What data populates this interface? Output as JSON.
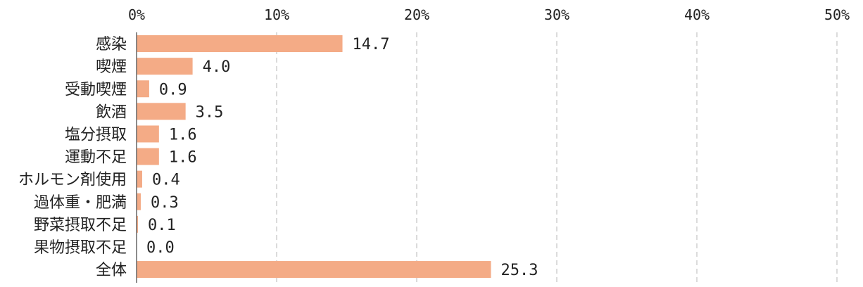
{
  "chart_data": {
    "type": "bar",
    "orientation": "horizontal",
    "categories": [
      "感染",
      "喫煙",
      "受動喫煙",
      "飲酒",
      "塩分摂取",
      "運動不足",
      "ホルモン剤使用",
      "過体重・肥満",
      "野菜摂取不足",
      "果物摂取不足",
      "全体"
    ],
    "values": [
      14.7,
      4.0,
      0.9,
      3.5,
      1.6,
      1.6,
      0.4,
      0.3,
      0.1,
      0.0,
      25.3
    ],
    "value_labels": [
      "14.7",
      "4.0",
      "0.9",
      "3.5",
      "1.6",
      "1.6",
      "0.4",
      "0.3",
      "0.1",
      "0.0",
      "25.3"
    ],
    "xlim": [
      0,
      50
    ],
    "ticks": [
      0,
      10,
      20,
      30,
      40,
      50
    ],
    "tick_labels": [
      "0%",
      "10%",
      "20%",
      "30%",
      "40%",
      "50%"
    ],
    "x_axis_position": "top",
    "grid": "vertical dashed",
    "legend": "none",
    "bar_color": "#f4ab86",
    "title": "",
    "xlabel": "",
    "ylabel": ""
  }
}
